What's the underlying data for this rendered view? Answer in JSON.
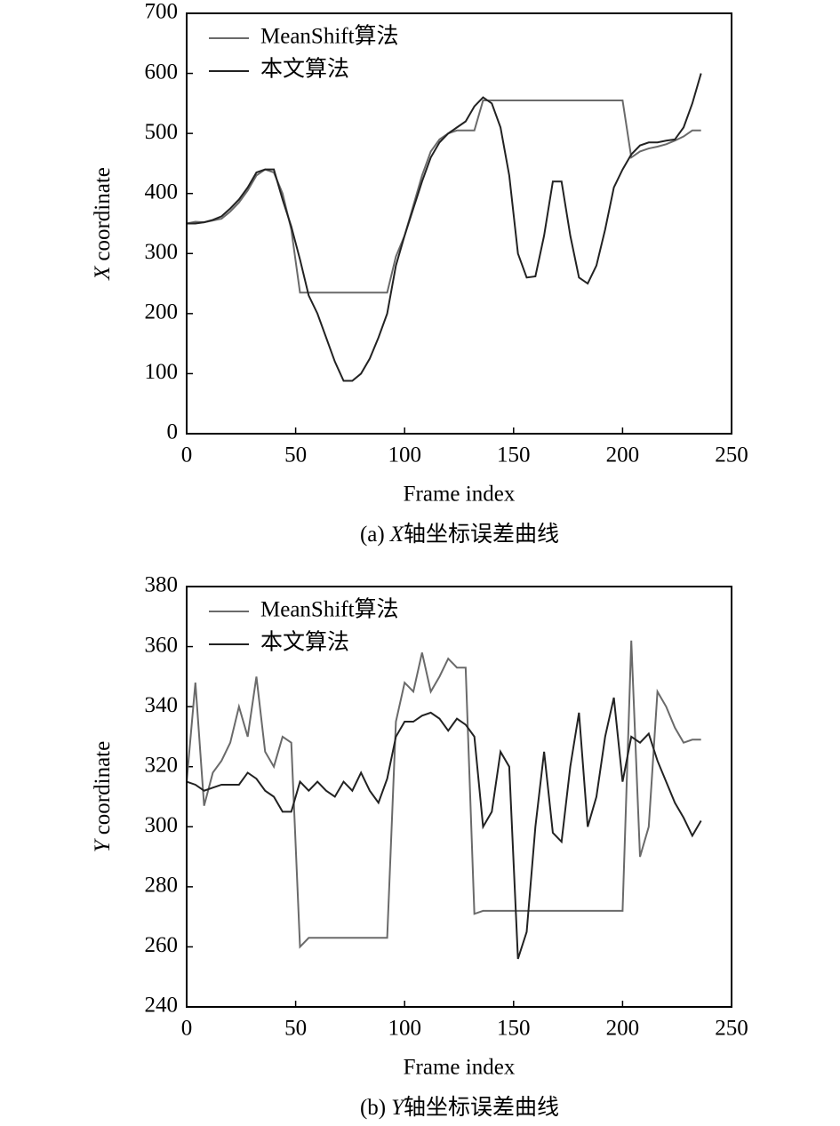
{
  "chart_data": [
    {
      "type": "line",
      "xlabel": "Frame index",
      "ylabel_var": "X",
      "ylabel_text": "coordinate",
      "caption_prefix": "(a)",
      "caption_var": "X",
      "caption_text": "轴坐标误差曲线",
      "legend": "upper left",
      "xlim": [
        0,
        250
      ],
      "xticks": [
        0,
        50,
        100,
        150,
        200,
        250
      ],
      "ylim": [
        0,
        700
      ],
      "yticks": [
        0,
        100,
        200,
        300,
        400,
        500,
        600,
        700
      ],
      "x": [
        0,
        4,
        8,
        12,
        16,
        20,
        24,
        28,
        32,
        36,
        40,
        44,
        48,
        52,
        56,
        60,
        64,
        68,
        72,
        76,
        80,
        84,
        88,
        92,
        96,
        100,
        104,
        108,
        112,
        116,
        120,
        124,
        128,
        132,
        136,
        140,
        144,
        148,
        152,
        156,
        160,
        164,
        168,
        172,
        176,
        180,
        184,
        188,
        192,
        196,
        200,
        204,
        208,
        212,
        216,
        220,
        224,
        228,
        232,
        236
      ],
      "series": [
        {
          "name": "MeanShift算法",
          "color": "#6a6a6a",
          "values": [
            350,
            353,
            352,
            355,
            358,
            370,
            385,
            405,
            430,
            440,
            435,
            400,
            340,
            235,
            235,
            235,
            235,
            235,
            235,
            235,
            235,
            235,
            235,
            235,
            295,
            330,
            380,
            430,
            470,
            490,
            500,
            505,
            505,
            505,
            555,
            555,
            555,
            555,
            555,
            555,
            555,
            555,
            555,
            555,
            555,
            555,
            555,
            555,
            555,
            555,
            555,
            460,
            470,
            475,
            478,
            482,
            488,
            495,
            505,
            505
          ]
        },
        {
          "name": "本文算法",
          "color": "#222222",
          "values": [
            350,
            350,
            352,
            356,
            362,
            375,
            390,
            410,
            435,
            440,
            440,
            390,
            345,
            290,
            230,
            200,
            160,
            120,
            88,
            88,
            100,
            125,
            160,
            200,
            280,
            330,
            375,
            420,
            460,
            485,
            500,
            510,
            520,
            545,
            560,
            550,
            510,
            430,
            300,
            260,
            262,
            330,
            420,
            420,
            330,
            260,
            250,
            280,
            340,
            410,
            440,
            465,
            480,
            485,
            485,
            488,
            490,
            510,
            550,
            600
          ]
        }
      ]
    },
    {
      "type": "line",
      "xlabel": "Frame index",
      "ylabel_var": "Y",
      "ylabel_text": "coordinate",
      "caption_prefix": "(b)",
      "caption_var": "Y",
      "caption_text": "轴坐标误差曲线",
      "legend": "upper left",
      "xlim": [
        0,
        250
      ],
      "xticks": [
        0,
        50,
        100,
        150,
        200,
        250
      ],
      "ylim": [
        240,
        380
      ],
      "yticks": [
        240,
        260,
        280,
        300,
        320,
        340,
        360,
        380
      ],
      "x": [
        0,
        4,
        8,
        12,
        16,
        20,
        24,
        28,
        32,
        36,
        40,
        44,
        48,
        52,
        56,
        60,
        64,
        68,
        72,
        76,
        80,
        84,
        88,
        92,
        96,
        100,
        104,
        108,
        112,
        116,
        120,
        124,
        128,
        132,
        136,
        140,
        144,
        148,
        152,
        156,
        160,
        164,
        168,
        172,
        176,
        180,
        184,
        188,
        192,
        196,
        200,
        204,
        208,
        212,
        216,
        220,
        224,
        228,
        232,
        236
      ],
      "series": [
        {
          "name": "MeanShift算法",
          "color": "#6a6a6a",
          "values": [
            315,
            348,
            307,
            318,
            322,
            328,
            340,
            330,
            350,
            325,
            320,
            330,
            328,
            260,
            263,
            263,
            263,
            263,
            263,
            263,
            263,
            263,
            263,
            263,
            335,
            348,
            345,
            358,
            345,
            350,
            356,
            353,
            353,
            271,
            272,
            272,
            272,
            272,
            272,
            272,
            272,
            272,
            272,
            272,
            272,
            272,
            272,
            272,
            272,
            272,
            272,
            362,
            290,
            300,
            345,
            340,
            333,
            328,
            329,
            329
          ]
        },
        {
          "name": "本文算法",
          "color": "#222222",
          "values": [
            315,
            314,
            312,
            313,
            314,
            314,
            314,
            318,
            316,
            312,
            310,
            305,
            305,
            315,
            312,
            315,
            312,
            310,
            315,
            312,
            318,
            312,
            308,
            316,
            330,
            335,
            335,
            337,
            338,
            336,
            332,
            336,
            334,
            330,
            300,
            305,
            325,
            320,
            256,
            265,
            300,
            325,
            298,
            295,
            320,
            338,
            300,
            310,
            330,
            343,
            315,
            330,
            328,
            331,
            322,
            315,
            308,
            303,
            297,
            302
          ]
        }
      ]
    }
  ]
}
